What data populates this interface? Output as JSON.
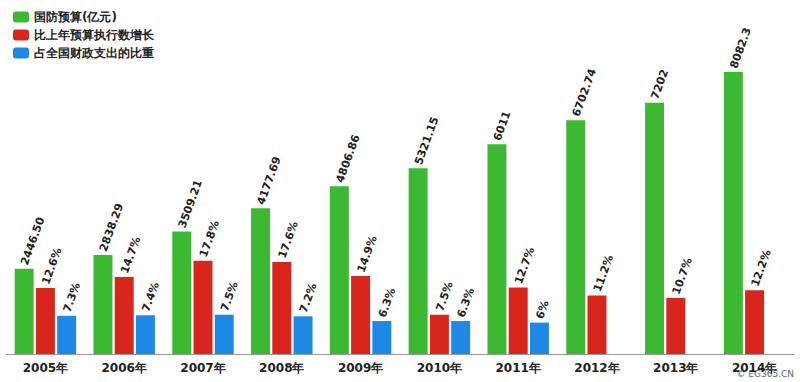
{
  "chart_data": {
    "type": "bar",
    "categories": [
      "2005年",
      "2006年",
      "2007年",
      "2008年",
      "2009年",
      "2010年",
      "2011年",
      "2012年",
      "2013年",
      "2014年"
    ],
    "series": [
      {
        "name": "国防预算(亿元)",
        "color": "#3cb832",
        "values": [
          2446.5,
          2838.29,
          3509.21,
          4177.69,
          4806.86,
          5321.15,
          6011,
          6702.74,
          7202,
          8082.3
        ],
        "value_labels": [
          "2446.50",
          "2838.29",
          "3509.21",
          "4177.69",
          "4806.86",
          "5321.15",
          "6011",
          "6702.74",
          "7202",
          "8082.3"
        ]
      },
      {
        "name": "比上年预算执行数增长",
        "color": "#d8261c",
        "axis": "y2",
        "values": [
          12.6,
          14.7,
          17.8,
          17.6,
          14.9,
          7.5,
          12.7,
          11.2,
          10.7,
          12.2
        ],
        "value_labels": [
          "12.6%",
          "14.7%",
          "17.8%",
          "17.6%",
          "14.9%",
          "7.5%",
          "12.7%",
          "11.2%",
          "10.7%",
          "12.2%"
        ]
      },
      {
        "name": "占全国财政支出的比重",
        "color": "#1e88e5",
        "axis": "y2",
        "values": [
          7.3,
          7.4,
          7.5,
          7.2,
          6.3,
          6.3,
          6,
          null,
          null,
          null
        ],
        "value_labels": [
          "7.3%",
          "7.4%",
          "7.5%",
          "7.2%",
          "6.3%",
          "6.3%",
          "6%",
          null,
          null,
          null
        ]
      }
    ],
    "ylim": [
      0,
      9000
    ],
    "yticks": [
      0,
      9000
    ],
    "y2lim": [
      0,
      60
    ],
    "y2ticks": [
      0,
      60
    ],
    "grid": false,
    "legend": "top-left",
    "data_labels": true,
    "tick_labels": false,
    "source": "© EG365.CN"
  }
}
